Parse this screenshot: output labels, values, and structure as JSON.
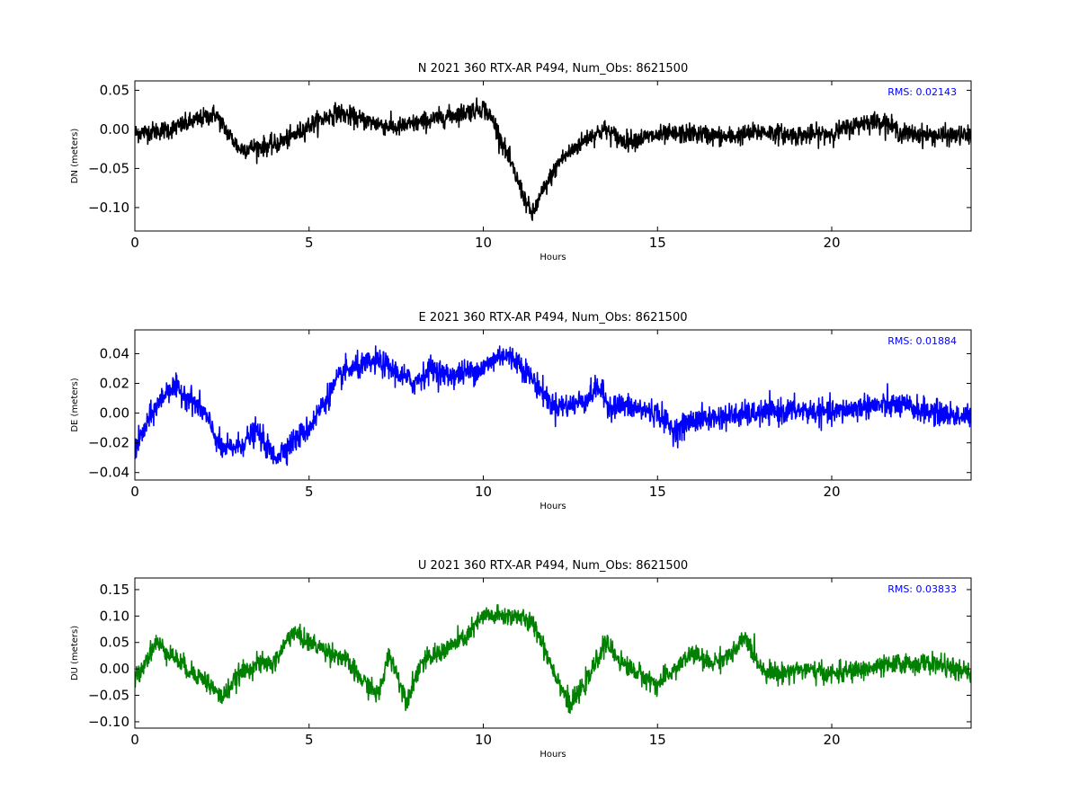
{
  "chart_data": [
    {
      "type": "line",
      "title": "N 2021 360 RTX-AR  P494, Num_Obs: 8621500",
      "xlabel": "Hours",
      "ylabel": "DN (meters)",
      "xlim": [
        0,
        24
      ],
      "ylim": [
        -0.13,
        0.062
      ],
      "xticks": [
        0,
        5,
        10,
        15,
        20
      ],
      "yticks": [
        0.05,
        0.0,
        -0.05,
        -0.1
      ],
      "ytick_labels": [
        "0.05",
        "0.00",
        "−0.05",
        "−0.10"
      ],
      "color": "#000000",
      "grid": false,
      "annotation": "RMS:  0.02143",
      "annotation_color": "#0000ff",
      "noise": 0.011,
      "series": [
        {
          "values": [
            [
              0,
              -0.005
            ],
            [
              1,
              0.0
            ],
            [
              2,
              0.015
            ],
            [
              2.3,
              0.02
            ],
            [
              2.6,
              0.0
            ],
            [
              3,
              -0.025
            ],
            [
              4,
              -0.02
            ],
            [
              4.5,
              -0.01
            ],
            [
              5,
              0.005
            ],
            [
              5.8,
              0.022
            ],
            [
              6.5,
              0.012
            ],
            [
              7.5,
              0.002
            ],
            [
              8.5,
              0.012
            ],
            [
              9.5,
              0.022
            ],
            [
              10,
              0.028
            ],
            [
              10.3,
              0.01
            ],
            [
              10.8,
              -0.045
            ],
            [
              11.2,
              -0.09
            ],
            [
              11.4,
              -0.11
            ],
            [
              11.7,
              -0.08
            ],
            [
              12.2,
              -0.04
            ],
            [
              13,
              -0.01
            ],
            [
              13.5,
              0.0
            ],
            [
              14,
              -0.015
            ],
            [
              15,
              -0.008
            ],
            [
              16,
              -0.005
            ],
            [
              17,
              -0.01
            ],
            [
              18,
              -0.003
            ],
            [
              19,
              -0.008
            ],
            [
              20,
              -0.005
            ],
            [
              21,
              0.01
            ],
            [
              21.5,
              0.01
            ],
            [
              22,
              -0.005
            ],
            [
              23,
              -0.008
            ],
            [
              24,
              -0.008
            ]
          ]
        }
      ]
    },
    {
      "type": "line",
      "title": "E 2021 360 RTX-AR  P494, Num_Obs: 8621500",
      "xlabel": "Hours",
      "ylabel": "DE (meters)",
      "xlim": [
        0,
        24
      ],
      "ylim": [
        -0.045,
        0.056
      ],
      "xticks": [
        0,
        5,
        10,
        15,
        20
      ],
      "yticks": [
        0.04,
        0.02,
        0.0,
        -0.02,
        -0.04
      ],
      "ytick_labels": [
        "0.04",
        "0.02",
        "0.00",
        "−0.02",
        "−0.04"
      ],
      "color": "#0000ff",
      "grid": false,
      "annotation": "RMS:  0.01884",
      "annotation_color": "#0000ff",
      "noise": 0.0075,
      "series": [
        {
          "values": [
            [
              0,
              -0.025
            ],
            [
              0.5,
              0.0
            ],
            [
              1,
              0.018
            ],
            [
              1.5,
              0.012
            ],
            [
              2,
              0.0
            ],
            [
              2.5,
              -0.025
            ],
            [
              3,
              -0.022
            ],
            [
              3.5,
              -0.012
            ],
            [
              4,
              -0.03
            ],
            [
              4.5,
              -0.02
            ],
            [
              5,
              -0.01
            ],
            [
              5.5,
              0.01
            ],
            [
              6,
              0.028
            ],
            [
              7,
              0.035
            ],
            [
              8,
              0.02
            ],
            [
              8.5,
              0.03
            ],
            [
              9,
              0.025
            ],
            [
              10,
              0.03
            ],
            [
              10.5,
              0.04
            ],
            [
              11,
              0.035
            ],
            [
              11.5,
              0.02
            ],
            [
              12,
              0.005
            ],
            [
              12.5,
              0.005
            ],
            [
              13,
              0.01
            ],
            [
              13.3,
              0.018
            ],
            [
              13.6,
              0.005
            ],
            [
              14,
              0.005
            ],
            [
              15,
              0.0
            ],
            [
              15.5,
              -0.012
            ],
            [
              16,
              -0.005
            ],
            [
              17,
              -0.002
            ],
            [
              18,
              0.0
            ],
            [
              19,
              0.002
            ],
            [
              20,
              0.0
            ],
            [
              21,
              0.005
            ],
            [
              22,
              0.005
            ],
            [
              23,
              0.0
            ],
            [
              24,
              -0.003
            ]
          ]
        }
      ]
    },
    {
      "type": "line",
      "title": "U 2021 360 RTX-AR  P494, Num_Obs: 8621500",
      "xlabel": "Hours",
      "ylabel": "DU (meters)",
      "xlim": [
        0,
        24
      ],
      "ylim": [
        -0.112,
        0.172
      ],
      "xticks": [
        0,
        5,
        10,
        15,
        20
      ],
      "yticks": [
        0.15,
        0.1,
        0.05,
        0.0,
        -0.05,
        -0.1
      ],
      "ytick_labels": [
        "0.15",
        "0.10",
        "0.05",
        "0.00",
        "−0.05",
        "−0.10"
      ],
      "color": "#008000",
      "grid": false,
      "annotation": "RMS:  0.03833",
      "annotation_color": "#0000ff",
      "noise": 0.017,
      "series": [
        {
          "values": [
            [
              0,
              -0.02
            ],
            [
              0.6,
              0.05
            ],
            [
              1,
              0.03
            ],
            [
              1.5,
              0.0
            ],
            [
              2,
              -0.02
            ],
            [
              2.5,
              -0.055
            ],
            [
              3,
              -0.01
            ],
            [
              3.5,
              0.01
            ],
            [
              4,
              0.01
            ],
            [
              4.5,
              0.07
            ],
            [
              5,
              0.05
            ],
            [
              6,
              0.02
            ],
            [
              6.5,
              -0.02
            ],
            [
              7,
              -0.05
            ],
            [
              7.3,
              0.03
            ],
            [
              7.8,
              -0.06
            ],
            [
              8.2,
              0.01
            ],
            [
              9,
              0.04
            ],
            [
              9.5,
              0.06
            ],
            [
              10,
              0.1
            ],
            [
              10.5,
              0.1
            ],
            [
              11,
              0.1
            ],
            [
              11.5,
              0.08
            ],
            [
              12,
              0.0
            ],
            [
              12.5,
              -0.07
            ],
            [
              13,
              -0.02
            ],
            [
              13.5,
              0.05
            ],
            [
              14,
              0.01
            ],
            [
              15,
              -0.03
            ],
            [
              15.5,
              0.0
            ],
            [
              16,
              0.03
            ],
            [
              16.5,
              0.01
            ],
            [
              17.2,
              0.03
            ],
            [
              17.5,
              0.06
            ],
            [
              18,
              0.0
            ],
            [
              18.5,
              -0.01
            ],
            [
              19,
              0.0
            ],
            [
              20,
              -0.01
            ],
            [
              21,
              0.0
            ],
            [
              22,
              0.01
            ],
            [
              23,
              0.01
            ],
            [
              24,
              -0.01
            ]
          ]
        }
      ]
    }
  ]
}
